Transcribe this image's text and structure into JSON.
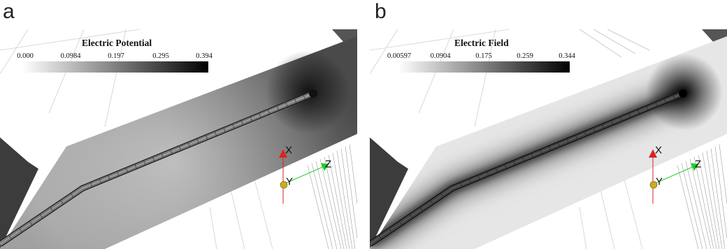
{
  "panels": [
    {
      "letter": "a",
      "colorbar": {
        "title": "Electric Potential",
        "ticks": [
          "0.000",
          "0.0984",
          "0.197",
          "0.295",
          "0.394"
        ]
      },
      "axes": {
        "x": "X",
        "y": "Y",
        "z": "Z"
      }
    },
    {
      "letter": "b",
      "colorbar": {
        "title": "Electric Field",
        "ticks": [
          "0.00597",
          "0.0904",
          "0.175",
          "0.259",
          "0.344"
        ]
      },
      "axes": {
        "x": "X",
        "y": "Y",
        "z": "Z"
      }
    }
  ],
  "colors": {
    "axis_x": "#dd2222",
    "axis_y": "#ccaa22",
    "axis_z": "#22cc22"
  }
}
